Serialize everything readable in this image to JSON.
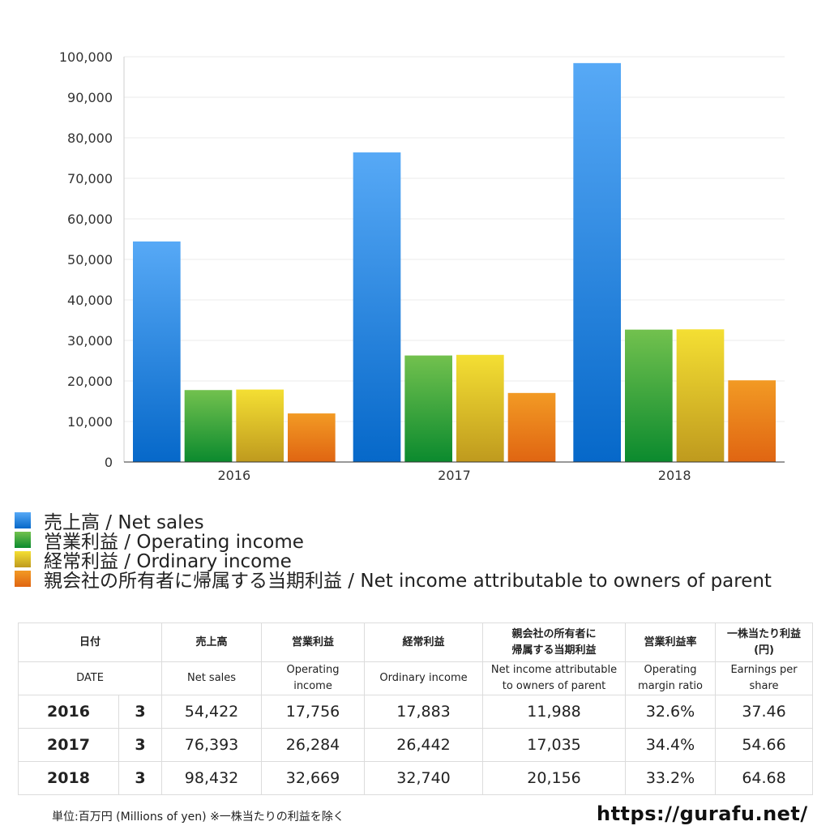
{
  "chart_data": {
    "type": "bar",
    "categories": [
      "2016",
      "2017",
      "2018"
    ],
    "ylim": [
      0,
      100000
    ],
    "yticks": [
      "0",
      "10,000",
      "20,000",
      "30,000",
      "40,000",
      "50,000",
      "60,000",
      "70,000",
      "80,000",
      "90,000",
      "100,000"
    ],
    "series": [
      {
        "name": "売上高 / Net sales",
        "values": [
          54422,
          76393,
          98432
        ],
        "colors": [
          "#57a9f6",
          "#0668c9"
        ]
      },
      {
        "name": "営業利益 / Operating income",
        "values": [
          17756,
          26284,
          32669
        ],
        "colors": [
          "#72c14e",
          "#0b8a2e"
        ]
      },
      {
        "name": "経常利益 / Ordinary income",
        "values": [
          17883,
          26442,
          32740
        ],
        "colors": [
          "#f4df33",
          "#bf9a1e"
        ]
      },
      {
        "name": "親会社の所有者に帰属する当期利益 / Net income attributable to owners of parent",
        "values": [
          11988,
          17035,
          20156
        ],
        "colors": [
          "#f29a24",
          "#e06512"
        ]
      }
    ],
    "grid": true,
    "legend": "bottom"
  },
  "table": {
    "header_jp": [
      "日付",
      "売上高",
      "営業利益",
      "経常利益",
      "親会社の所有者に",
      "帰属する当期利益",
      "営業利益率",
      "一株当たり利益",
      "(円)"
    ],
    "header_en": [
      "DATE",
      "Net sales",
      "Operating",
      "income",
      "Ordinary income",
      "Net income attributable",
      "to owners of parent",
      "Operating",
      "margin ratio",
      "Earnings per",
      "share"
    ],
    "rows": [
      [
        "2016",
        "3",
        "54,422",
        "17,756",
        "17,883",
        "11,988",
        "32.6%",
        "37.46"
      ],
      [
        "2017",
        "3",
        "76,393",
        "26,284",
        "26,442",
        "17,035",
        "34.4%",
        "54.66"
      ],
      [
        "2018",
        "3",
        "98,432",
        "32,669",
        "32,740",
        "20,156",
        "33.2%",
        "64.68"
      ]
    ]
  },
  "footer": {
    "note": "単位:百万円 (Millions of yen) ※一株当たりの利益を除く",
    "url": "https://gurafu.net/"
  }
}
